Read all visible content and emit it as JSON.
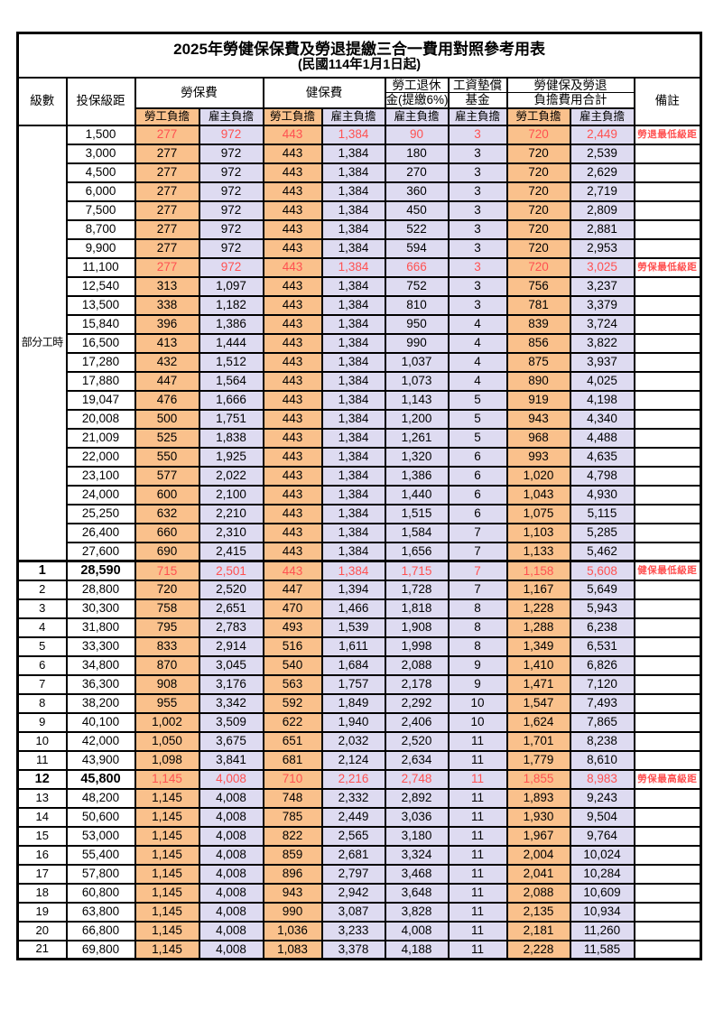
{
  "title": "2025年勞健保保費及勞退提繳三合一費用對照參考用表",
  "subtitle": "(民國114年1月1日起)",
  "accent_colors": {
    "employee_bg": "#FAC18C",
    "employer_bg": "#DEDBF1",
    "highlight_text": "#FF5151",
    "border": "#000000"
  },
  "header": {
    "level": "級數",
    "bracket": "投保級距",
    "labor_insurance": "勞保費",
    "health_insurance": "健保費",
    "pension_line1": "勞工退休",
    "pension_line2": "金(提繳6%)",
    "wage_fund_line1": "工資墊償",
    "wage_fund_line2": "基金",
    "total_line1": "勞健保及勞退",
    "total_line2": "負擔費用合計",
    "remark": "備註",
    "employee_share": "勞工負擔",
    "employer_share": "雇主負擔"
  },
  "table": {
    "part_time_label": "部分工時",
    "part_time_rowspan": 23,
    "rows": [
      {
        "level": "",
        "bracket": "1,500",
        "li_emp": "277",
        "li_er": "972",
        "hi_emp": "443",
        "hi_er": "1,384",
        "pension": "90",
        "fund": "3",
        "tot_emp": "720",
        "tot_er": "2,449",
        "remark": "勞退最低級距",
        "red": true
      },
      {
        "bracket": "3,000",
        "li_emp": "277",
        "li_er": "972",
        "hi_emp": "443",
        "hi_er": "1,384",
        "pension": "180",
        "fund": "3",
        "tot_emp": "720",
        "tot_er": "2,539"
      },
      {
        "bracket": "4,500",
        "li_emp": "277",
        "li_er": "972",
        "hi_emp": "443",
        "hi_er": "1,384",
        "pension": "270",
        "fund": "3",
        "tot_emp": "720",
        "tot_er": "2,629"
      },
      {
        "bracket": "6,000",
        "li_emp": "277",
        "li_er": "972",
        "hi_emp": "443",
        "hi_er": "1,384",
        "pension": "360",
        "fund": "3",
        "tot_emp": "720",
        "tot_er": "2,719"
      },
      {
        "bracket": "7,500",
        "li_emp": "277",
        "li_er": "972",
        "hi_emp": "443",
        "hi_er": "1,384",
        "pension": "450",
        "fund": "3",
        "tot_emp": "720",
        "tot_er": "2,809"
      },
      {
        "bracket": "8,700",
        "li_emp": "277",
        "li_er": "972",
        "hi_emp": "443",
        "hi_er": "1,384",
        "pension": "522",
        "fund": "3",
        "tot_emp": "720",
        "tot_er": "2,881"
      },
      {
        "bracket": "9,900",
        "li_emp": "277",
        "li_er": "972",
        "hi_emp": "443",
        "hi_er": "1,384",
        "pension": "594",
        "fund": "3",
        "tot_emp": "720",
        "tot_er": "2,953"
      },
      {
        "bracket": "11,100",
        "li_emp": "277",
        "li_er": "972",
        "hi_emp": "443",
        "hi_er": "1,384",
        "pension": "666",
        "fund": "3",
        "tot_emp": "720",
        "tot_er": "3,025",
        "remark": "勞保最低級距",
        "red": true
      },
      {
        "bracket": "12,540",
        "li_emp": "313",
        "li_er": "1,097",
        "hi_emp": "443",
        "hi_er": "1,384",
        "pension": "752",
        "fund": "3",
        "tot_emp": "756",
        "tot_er": "3,237"
      },
      {
        "bracket": "13,500",
        "li_emp": "338",
        "li_er": "1,182",
        "hi_emp": "443",
        "hi_er": "1,384",
        "pension": "810",
        "fund": "3",
        "tot_emp": "781",
        "tot_er": "3,379"
      },
      {
        "bracket": "15,840",
        "li_emp": "396",
        "li_er": "1,386",
        "hi_emp": "443",
        "hi_er": "1,384",
        "pension": "950",
        "fund": "4",
        "tot_emp": "839",
        "tot_er": "3,724"
      },
      {
        "bracket": "16,500",
        "li_emp": "413",
        "li_er": "1,444",
        "hi_emp": "443",
        "hi_er": "1,384",
        "pension": "990",
        "fund": "4",
        "tot_emp": "856",
        "tot_er": "3,822"
      },
      {
        "bracket": "17,280",
        "li_emp": "432",
        "li_er": "1,512",
        "hi_emp": "443",
        "hi_er": "1,384",
        "pension": "1,037",
        "fund": "4",
        "tot_emp": "875",
        "tot_er": "3,937"
      },
      {
        "bracket": "17,880",
        "li_emp": "447",
        "li_er": "1,564",
        "hi_emp": "443",
        "hi_er": "1,384",
        "pension": "1,073",
        "fund": "4",
        "tot_emp": "890",
        "tot_er": "4,025"
      },
      {
        "bracket": "19,047",
        "li_emp": "476",
        "li_er": "1,666",
        "hi_emp": "443",
        "hi_er": "1,384",
        "pension": "1,143",
        "fund": "5",
        "tot_emp": "919",
        "tot_er": "4,198"
      },
      {
        "bracket": "20,008",
        "li_emp": "500",
        "li_er": "1,751",
        "hi_emp": "443",
        "hi_er": "1,384",
        "pension": "1,200",
        "fund": "5",
        "tot_emp": "943",
        "tot_er": "4,340"
      },
      {
        "bracket": "21,009",
        "li_emp": "525",
        "li_er": "1,838",
        "hi_emp": "443",
        "hi_er": "1,384",
        "pension": "1,261",
        "fund": "5",
        "tot_emp": "968",
        "tot_er": "4,488"
      },
      {
        "bracket": "22,000",
        "li_emp": "550",
        "li_er": "1,925",
        "hi_emp": "443",
        "hi_er": "1,384",
        "pension": "1,320",
        "fund": "6",
        "tot_emp": "993",
        "tot_er": "4,635"
      },
      {
        "bracket": "23,100",
        "li_emp": "577",
        "li_er": "2,022",
        "hi_emp": "443",
        "hi_er": "1,384",
        "pension": "1,386",
        "fund": "6",
        "tot_emp": "1,020",
        "tot_er": "4,798"
      },
      {
        "bracket": "24,000",
        "li_emp": "600",
        "li_er": "2,100",
        "hi_emp": "443",
        "hi_er": "1,384",
        "pension": "1,440",
        "fund": "6",
        "tot_emp": "1,043",
        "tot_er": "4,930"
      },
      {
        "bracket": "25,250",
        "li_emp": "632",
        "li_er": "2,210",
        "hi_emp": "443",
        "hi_er": "1,384",
        "pension": "1,515",
        "fund": "6",
        "tot_emp": "1,075",
        "tot_er": "5,115"
      },
      {
        "bracket": "26,400",
        "li_emp": "660",
        "li_er": "2,310",
        "hi_emp": "443",
        "hi_er": "1,384",
        "pension": "1,584",
        "fund": "7",
        "tot_emp": "1,103",
        "tot_er": "5,285"
      },
      {
        "bracket": "27,600",
        "li_emp": "690",
        "li_er": "2,415",
        "hi_emp": "443",
        "hi_er": "1,384",
        "pension": "1,656",
        "fund": "7",
        "tot_emp": "1,133",
        "tot_er": "5,462"
      },
      {
        "level": "1",
        "bracket": "28,590",
        "li_emp": "715",
        "li_er": "2,501",
        "hi_emp": "443",
        "hi_er": "1,384",
        "pension": "1,715",
        "fund": "7",
        "tot_emp": "1,158",
        "tot_er": "5,608",
        "remark": "健保最低級距",
        "red": true,
        "bold": true,
        "section_start": true
      },
      {
        "level": "2",
        "bracket": "28,800",
        "li_emp": "720",
        "li_er": "2,520",
        "hi_emp": "447",
        "hi_er": "1,394",
        "pension": "1,728",
        "fund": "7",
        "tot_emp": "1,167",
        "tot_er": "5,649"
      },
      {
        "level": "3",
        "bracket": "30,300",
        "li_emp": "758",
        "li_er": "2,651",
        "hi_emp": "470",
        "hi_er": "1,466",
        "pension": "1,818",
        "fund": "8",
        "tot_emp": "1,228",
        "tot_er": "5,943"
      },
      {
        "level": "4",
        "bracket": "31,800",
        "li_emp": "795",
        "li_er": "2,783",
        "hi_emp": "493",
        "hi_er": "1,539",
        "pension": "1,908",
        "fund": "8",
        "tot_emp": "1,288",
        "tot_er": "6,238"
      },
      {
        "level": "5",
        "bracket": "33,300",
        "li_emp": "833",
        "li_er": "2,914",
        "hi_emp": "516",
        "hi_er": "1,611",
        "pension": "1,998",
        "fund": "8",
        "tot_emp": "1,349",
        "tot_er": "6,531"
      },
      {
        "level": "6",
        "bracket": "34,800",
        "li_emp": "870",
        "li_er": "3,045",
        "hi_emp": "540",
        "hi_er": "1,684",
        "pension": "2,088",
        "fund": "9",
        "tot_emp": "1,410",
        "tot_er": "6,826"
      },
      {
        "level": "7",
        "bracket": "36,300",
        "li_emp": "908",
        "li_er": "3,176",
        "hi_emp": "563",
        "hi_er": "1,757",
        "pension": "2,178",
        "fund": "9",
        "tot_emp": "1,471",
        "tot_er": "7,120"
      },
      {
        "level": "8",
        "bracket": "38,200",
        "li_emp": "955",
        "li_er": "3,342",
        "hi_emp": "592",
        "hi_er": "1,849",
        "pension": "2,292",
        "fund": "10",
        "tot_emp": "1,547",
        "tot_er": "7,493"
      },
      {
        "level": "9",
        "bracket": "40,100",
        "li_emp": "1,002",
        "li_er": "3,509",
        "hi_emp": "622",
        "hi_er": "1,940",
        "pension": "2,406",
        "fund": "10",
        "tot_emp": "1,624",
        "tot_er": "7,865"
      },
      {
        "level": "10",
        "bracket": "42,000",
        "li_emp": "1,050",
        "li_er": "3,675",
        "hi_emp": "651",
        "hi_er": "2,032",
        "pension": "2,520",
        "fund": "11",
        "tot_emp": "1,701",
        "tot_er": "8,238"
      },
      {
        "level": "11",
        "bracket": "43,900",
        "li_emp": "1,098",
        "li_er": "3,841",
        "hi_emp": "681",
        "hi_er": "2,124",
        "pension": "2,634",
        "fund": "11",
        "tot_emp": "1,779",
        "tot_er": "8,610"
      },
      {
        "level": "12",
        "bracket": "45,800",
        "li_emp": "1,145",
        "li_er": "4,008",
        "hi_emp": "710",
        "hi_er": "2,216",
        "pension": "2,748",
        "fund": "11",
        "tot_emp": "1,855",
        "tot_er": "8,983",
        "remark": "勞保最高級距",
        "red": true,
        "bold": true
      },
      {
        "level": "13",
        "bracket": "48,200",
        "li_emp": "1,145",
        "li_er": "4,008",
        "hi_emp": "748",
        "hi_er": "2,332",
        "pension": "2,892",
        "fund": "11",
        "tot_emp": "1,893",
        "tot_er": "9,243"
      },
      {
        "level": "14",
        "bracket": "50,600",
        "li_emp": "1,145",
        "li_er": "4,008",
        "hi_emp": "785",
        "hi_er": "2,449",
        "pension": "3,036",
        "fund": "11",
        "tot_emp": "1,930",
        "tot_er": "9,504"
      },
      {
        "level": "15",
        "bracket": "53,000",
        "li_emp": "1,145",
        "li_er": "4,008",
        "hi_emp": "822",
        "hi_er": "2,565",
        "pension": "3,180",
        "fund": "11",
        "tot_emp": "1,967",
        "tot_er": "9,764"
      },
      {
        "level": "16",
        "bracket": "55,400",
        "li_emp": "1,145",
        "li_er": "4,008",
        "hi_emp": "859",
        "hi_er": "2,681",
        "pension": "3,324",
        "fund": "11",
        "tot_emp": "2,004",
        "tot_er": "10,024"
      },
      {
        "level": "17",
        "bracket": "57,800",
        "li_emp": "1,145",
        "li_er": "4,008",
        "hi_emp": "896",
        "hi_er": "2,797",
        "pension": "3,468",
        "fund": "11",
        "tot_emp": "2,041",
        "tot_er": "10,284"
      },
      {
        "level": "18",
        "bracket": "60,800",
        "li_emp": "1,145",
        "li_er": "4,008",
        "hi_emp": "943",
        "hi_er": "2,942",
        "pension": "3,648",
        "fund": "11",
        "tot_emp": "2,088",
        "tot_er": "10,609"
      },
      {
        "level": "19",
        "bracket": "63,800",
        "li_emp": "1,145",
        "li_er": "4,008",
        "hi_emp": "990",
        "hi_er": "3,087",
        "pension": "3,828",
        "fund": "11",
        "tot_emp": "2,135",
        "tot_er": "10,934"
      },
      {
        "level": "20",
        "bracket": "66,800",
        "li_emp": "1,145",
        "li_er": "4,008",
        "hi_emp": "1,036",
        "hi_er": "3,233",
        "pension": "4,008",
        "fund": "11",
        "tot_emp": "2,181",
        "tot_er": "11,260"
      },
      {
        "level": "21",
        "bracket": "69,800",
        "li_emp": "1,145",
        "li_er": "4,008",
        "hi_emp": "1,083",
        "hi_er": "3,378",
        "pension": "4,188",
        "fund": "11",
        "tot_emp": "2,228",
        "tot_er": "11,585"
      }
    ]
  }
}
